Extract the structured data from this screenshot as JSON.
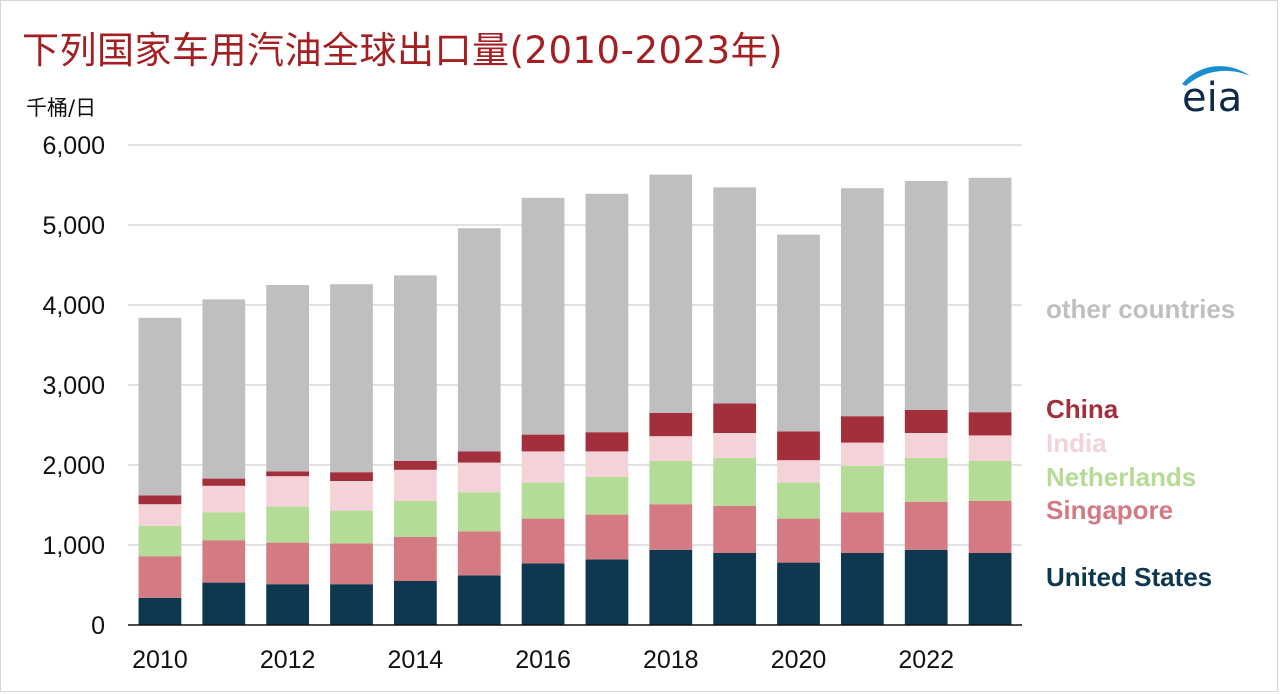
{
  "header": {
    "title": "下列国家车用汽油全球出口量(2010-2023年)",
    "unit": "千桶/日",
    "logo_text": "eia"
  },
  "colors": {
    "title": "#a31f22",
    "United States": "#0d3850",
    "Singapore": "#d47a82",
    "Netherlands": "#b5dc96",
    "India": "#f3d3d8",
    "China": "#a32f3c",
    "other countries": "#bfbfbf"
  },
  "chart_data": {
    "type": "bar",
    "stacked": true,
    "title": "下列国家车用汽油全球出口量(2010-2023年)",
    "ylabel": "千桶/日",
    "ylim": [
      0,
      6000
    ],
    "yticks": [
      "0",
      "1,000",
      "2,000",
      "3,000",
      "4,000",
      "5,000",
      "6,000"
    ],
    "xtick_labels": [
      "2010",
      "2012",
      "2014",
      "2016",
      "2018",
      "2020",
      "2022"
    ],
    "categories": [
      "2010",
      "2011",
      "2012",
      "2013",
      "2014",
      "2015",
      "2016",
      "2017",
      "2018",
      "2019",
      "2020",
      "2021",
      "2022",
      "2023"
    ],
    "grid": "horizontal",
    "legend_placement": "right",
    "series": [
      {
        "name": "United States",
        "values": [
          340,
          530,
          510,
          510,
          550,
          620,
          770,
          820,
          940,
          900,
          780,
          900,
          940,
          900
        ]
      },
      {
        "name": "Singapore",
        "values": [
          520,
          530,
          520,
          510,
          550,
          550,
          560,
          560,
          570,
          590,
          550,
          510,
          600,
          650
        ]
      },
      {
        "name": "Netherlands",
        "values": [
          380,
          350,
          450,
          410,
          450,
          490,
          450,
          470,
          540,
          600,
          450,
          580,
          550,
          500
        ]
      },
      {
        "name": "India",
        "values": [
          270,
          330,
          380,
          370,
          390,
          370,
          390,
          320,
          310,
          310,
          280,
          290,
          310,
          320
        ]
      },
      {
        "name": "China",
        "values": [
          110,
          90,
          60,
          110,
          110,
          140,
          210,
          240,
          290,
          370,
          360,
          330,
          290,
          290
        ]
      },
      {
        "name": "other countries",
        "values": [
          2220,
          2240,
          2330,
          2350,
          2320,
          2790,
          2960,
          2980,
          2980,
          2700,
          2460,
          2850,
          2860,
          2930
        ]
      }
    ],
    "legend": [
      "China",
      "India",
      "Netherlands",
      "Singapore",
      "United States",
      "other countries"
    ]
  }
}
